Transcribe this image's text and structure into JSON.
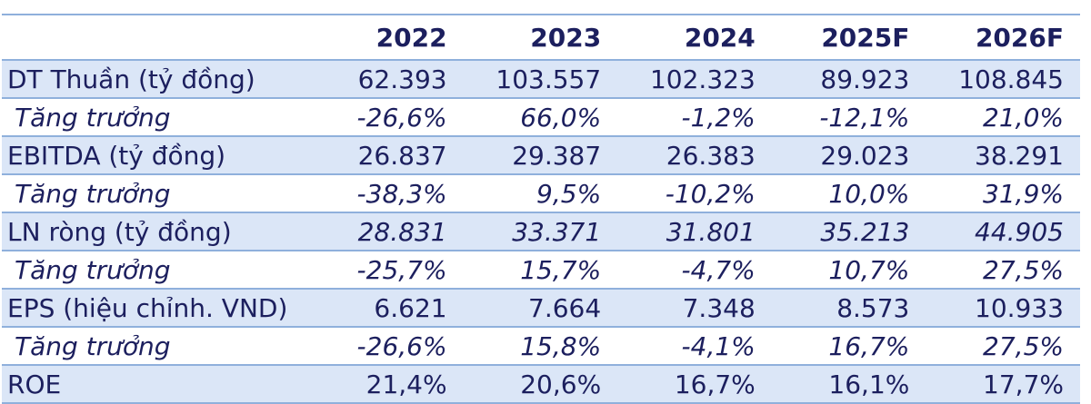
{
  "table": {
    "headers": [
      "",
      "2022",
      "2023",
      "2024",
      "2025F",
      "2026F"
    ],
    "rows": [
      {
        "label": "DT Thuần (tỷ đồng)",
        "values": [
          "62.393",
          "103.557",
          "102.323",
          "89.923",
          "108.845"
        ],
        "kind": "main",
        "shaded": true
      },
      {
        "label": "Tăng trưởng",
        "values": [
          "-26,6%",
          "66,0%",
          "-1,2%",
          "-12,1%",
          "21,0%"
        ],
        "kind": "growth",
        "shaded": false
      },
      {
        "label": "EBITDA (tỷ đồng)",
        "values": [
          "26.837",
          "29.387",
          "26.383",
          "29.023",
          "38.291"
        ],
        "kind": "main",
        "shaded": true
      },
      {
        "label": "Tăng trưởng",
        "values": [
          "-38,3%",
          "9,5%",
          "-10,2%",
          "10,0%",
          "31,9%"
        ],
        "kind": "growth",
        "shaded": false
      },
      {
        "label": "LN ròng (tỷ đồng)",
        "values": [
          "28.831",
          "33.371",
          "31.801",
          "35.213",
          "44.905"
        ],
        "kind": "main italic",
        "shaded": true
      },
      {
        "label": "Tăng trưởng",
        "values": [
          "-25,7%",
          "15,7%",
          "-4,7%",
          "10,7%",
          "27,5%"
        ],
        "kind": "growth",
        "shaded": false
      },
      {
        "label": "EPS (hiệu chỉnh. VND)",
        "values": [
          "6.621",
          "7.664",
          "7.348",
          "8.573",
          "10.933"
        ],
        "kind": "main",
        "shaded": true
      },
      {
        "label": "Tăng trưởng",
        "values": [
          "-26,6%",
          "15,8%",
          "-4,1%",
          "16,7%",
          "27,5%"
        ],
        "kind": "growth",
        "shaded": false
      },
      {
        "label": "ROE",
        "values": [
          "21,4%",
          "20,6%",
          "16,7%",
          "16,1%",
          "17,7%"
        ],
        "kind": "main",
        "shaded": true
      }
    ]
  },
  "colors": {
    "text": "#1c1f5e",
    "row_shade": "#dbe6f7",
    "rule": "#8fb0dc"
  }
}
